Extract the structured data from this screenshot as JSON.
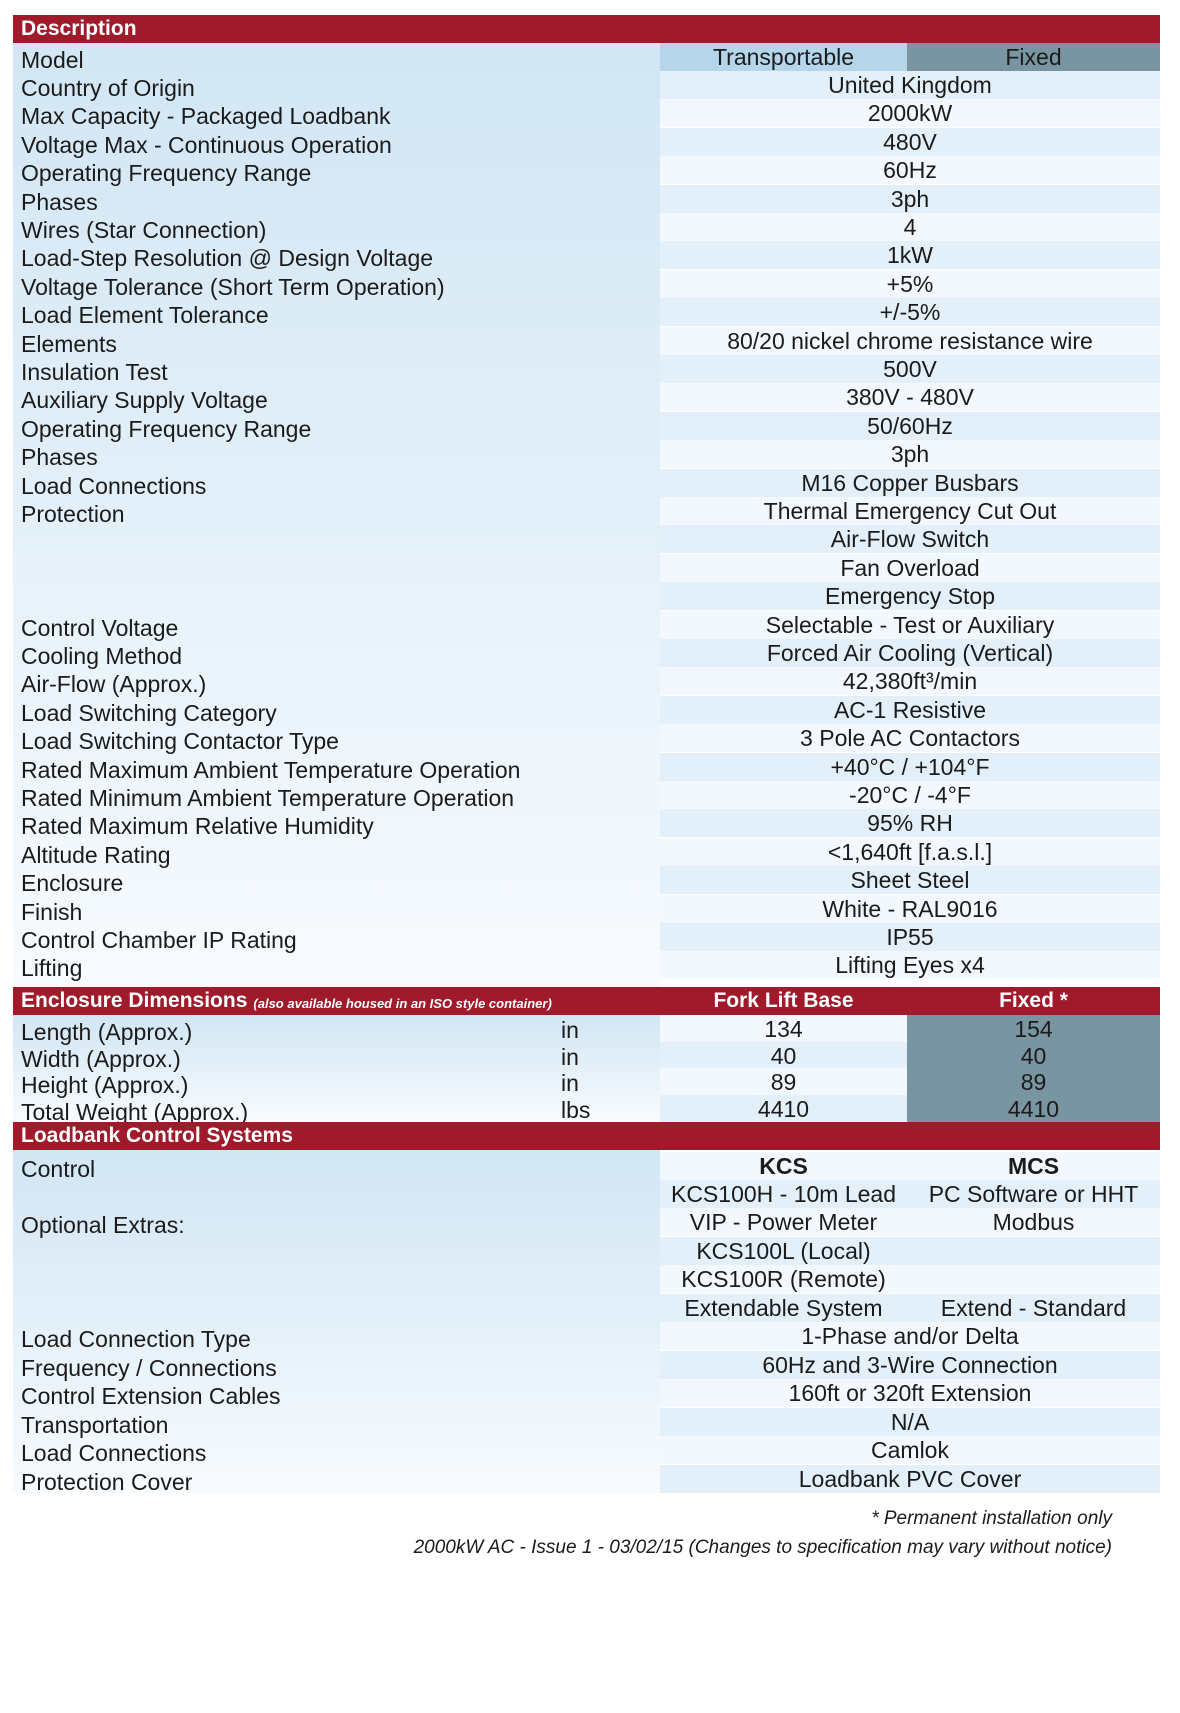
{
  "sections": {
    "description": {
      "title": "Description",
      "model": {
        "label": "Model",
        "transportable": "Transportable",
        "fixed": "Fixed"
      },
      "rows": [
        {
          "label": "Country of Origin",
          "value": "United Kingdom"
        },
        {
          "label": "Max Capacity - Packaged Loadbank",
          "value": "2000kW"
        },
        {
          "label": "Voltage Max - Continuous Operation",
          "value": "480V"
        },
        {
          "label": "Operating Frequency Range",
          "value": "60Hz"
        },
        {
          "label": "Phases",
          "value": "3ph"
        },
        {
          "label": "Wires (Star Connection)",
          "value": "4"
        },
        {
          "label": "Load-Step Resolution @ Design Voltage",
          "value": "1kW"
        },
        {
          "label": "Voltage Tolerance (Short Term Operation)",
          "value": "+5%"
        },
        {
          "label": "Load Element Tolerance",
          "value": "+/-5%"
        },
        {
          "label": "Elements",
          "value": "80/20 nickel chrome resistance wire"
        },
        {
          "label": "Insulation Test",
          "value": "500V"
        },
        {
          "label": "Auxiliary Supply Voltage",
          "value": "380V - 480V"
        },
        {
          "label": "Operating Frequency Range",
          "value": "50/60Hz"
        },
        {
          "label": "Phases",
          "value": "3ph"
        },
        {
          "label": "Load Connections",
          "value": "M16 Copper Busbars"
        },
        {
          "label": "Protection",
          "value": "Thermal Emergency Cut Out"
        },
        {
          "label": "",
          "value": "Air-Flow Switch"
        },
        {
          "label": "",
          "value": "Fan Overload"
        },
        {
          "label": "",
          "value": "Emergency Stop"
        },
        {
          "label": "Control Voltage",
          "value": "Selectable - Test or Auxiliary"
        },
        {
          "label": "Cooling Method",
          "value": "Forced Air Cooling (Vertical)"
        },
        {
          "label": "Air-Flow (Approx.)",
          "value": "42,380ft³/min"
        },
        {
          "label": "Load Switching Category",
          "value": "AC-1 Resistive"
        },
        {
          "label": "Load Switching Contactor Type",
          "value": "3 Pole AC Contactors"
        },
        {
          "label": "Rated Maximum Ambient Temperature Operation",
          "value": "+40°C / +104°F"
        },
        {
          "label": "Rated Minimum Ambient Temperature Operation",
          "value": "-20°C / -4°F"
        },
        {
          "label": "Rated Maximum Relative Humidity",
          "value": "95% RH"
        },
        {
          "label": "Altitude Rating",
          "value": "<1,640ft [f.a.s.l.]"
        },
        {
          "label": "Enclosure",
          "value": "Sheet Steel"
        },
        {
          "label": "Finish",
          "value": "White - RAL9016"
        },
        {
          "label": "Control Chamber IP Rating",
          "value": "IP55"
        },
        {
          "label": "Lifting",
          "value": "Lifting Eyes x4"
        }
      ]
    },
    "enclosure": {
      "title": "Enclosure Dimensions",
      "subtitle": "(also available housed in an ISO style container)",
      "col1": "Fork Lift Base",
      "col2": "Fixed *",
      "rows": [
        {
          "label": "Length (Approx.)",
          "unit": "in",
          "fork": "134",
          "fixed": "154"
        },
        {
          "label": "Width (Approx.)",
          "unit": "in",
          "fork": "40",
          "fixed": "40"
        },
        {
          "label": "Height (Approx.)",
          "unit": "in",
          "fork": "89",
          "fixed": "89"
        },
        {
          "label": "Total Weight (Approx.)",
          "unit": "lbs",
          "fork": "4410",
          "fixed": "4410"
        }
      ]
    },
    "control": {
      "title": "Loadbank Control Systems",
      "control_label": "Control",
      "kcs": "KCS",
      "mcs": "MCS",
      "extras_label": "Optional Extras:",
      "extras": [
        {
          "kcs": "KCS100H - 10m Lead",
          "mcs": "PC Software or HHT"
        },
        {
          "kcs": "VIP - Power Meter",
          "mcs": "Modbus"
        },
        {
          "kcs": "KCS100L (Local)",
          "mcs": ""
        },
        {
          "kcs": "KCS100R (Remote)",
          "mcs": ""
        },
        {
          "kcs": "Extendable System",
          "mcs": "Extend - Standard"
        }
      ],
      "rows": [
        {
          "label": "Load Connection Type",
          "value": "1-Phase and/or Delta"
        },
        {
          "label": "Frequency / Connections",
          "value": "60Hz and 3-Wire Connection"
        },
        {
          "label": "Control Extension Cables",
          "value": "160ft or 320ft Extension"
        },
        {
          "label": "Transportation",
          "value": "N/A"
        },
        {
          "label": "Load Connections",
          "value": "Camlok"
        },
        {
          "label": "Protection Cover",
          "value": "Loadbank PVC Cover"
        }
      ]
    }
  },
  "footnotes": {
    "note": "* Permanent installation only",
    "issue": "2000kW AC - Issue 1 - 03/02/15 (Changes to specification may vary without notice)"
  },
  "colors": {
    "header": "#9f1a2b",
    "transportable": "#b4d5ea",
    "fixed": "#7995a1"
  }
}
